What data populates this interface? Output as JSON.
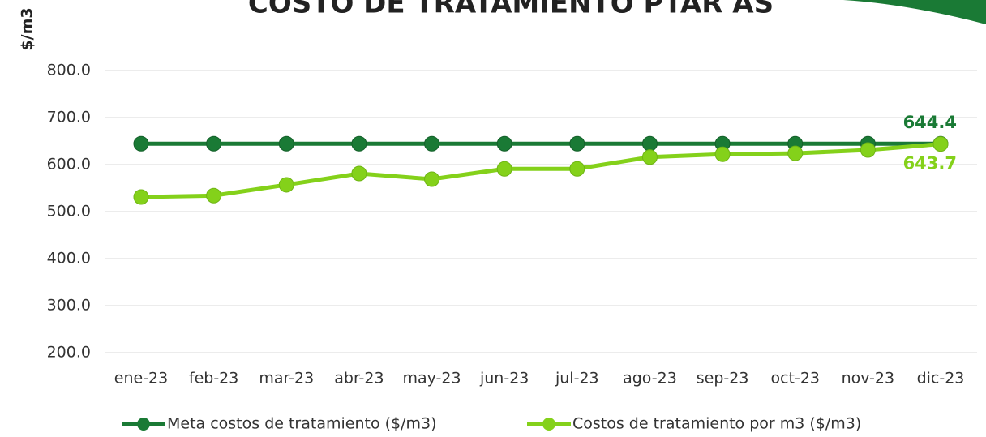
{
  "chart_data": {
    "type": "line",
    "title": "COSTO DE TRATAMIENTO PTAR AS",
    "y_label": "$/m3",
    "categories": [
      "ene-23",
      "feb-23",
      "mar-23",
      "abr-23",
      "may-23",
      "jun-23",
      "jul-23",
      "ago-23",
      "sep-23",
      "oct-23",
      "nov-23",
      "dic-23"
    ],
    "series": [
      {
        "name": "Meta costos de tratamiento ($/m3)",
        "color": "#1a7a35",
        "values": [
          644.4,
          644.4,
          644.4,
          644.4,
          644.4,
          644.4,
          644.4,
          644.4,
          644.4,
          644.4,
          644.4,
          644.4
        ]
      },
      {
        "name": "Costos de tratamiento por m3 ($/m3)",
        "color": "#84d11a",
        "values": [
          531,
          534,
          557,
          581,
          569,
          591,
          591,
          616,
          622,
          624,
          631,
          643.7
        ]
      }
    ],
    "ylim": [
      200,
      800
    ],
    "yticks": [
      {
        "value": 200,
        "label": "200.0"
      },
      {
        "value": 300,
        "label": "300.0"
      },
      {
        "value": 400,
        "label": "400.0"
      },
      {
        "value": 500,
        "label": "500.0"
      },
      {
        "value": 600,
        "label": "600.0"
      },
      {
        "value": 700,
        "label": "700.0"
      },
      {
        "value": 800,
        "label": "800.0"
      }
    ],
    "grid": true,
    "legend": "bottom"
  }
}
